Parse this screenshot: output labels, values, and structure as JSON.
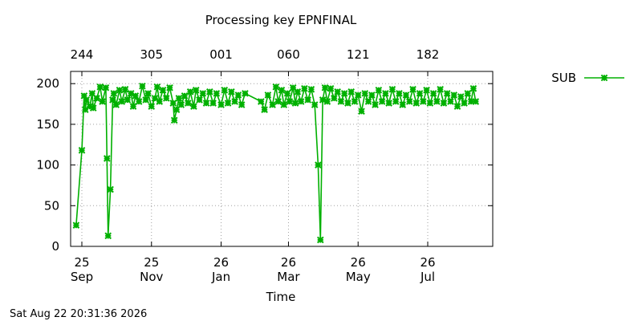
{
  "chart_data": {
    "type": "line",
    "title": "Processing key EPNFINAL",
    "xlabel": "Time",
    "ylabel": "",
    "ylim": [
      0,
      215
    ],
    "xlim": [
      "2025-09-01",
      "2026-08-22"
    ],
    "yticks": [
      "0",
      "50",
      "100",
      "150",
      "200"
    ],
    "bottom_ticks": [
      {
        "date": "2025-09-01",
        "day": "25",
        "month": "Sep"
      },
      {
        "date": "2025-11-01",
        "day": "25",
        "month": "Nov"
      },
      {
        "date": "2026-01-01",
        "day": "26",
        "month": "Jan"
      },
      {
        "date": "2026-03-01",
        "day": "26",
        "month": "Mar"
      },
      {
        "date": "2026-05-01",
        "day": "26",
        "month": "May"
      },
      {
        "date": "2026-07-01",
        "day": "26",
        "month": "Jul"
      }
    ],
    "top_ticks": [
      {
        "date": "2025-09-01",
        "label": "244"
      },
      {
        "date": "2025-11-01",
        "label": "305"
      },
      {
        "date": "2026-01-01",
        "label": "001"
      },
      {
        "date": "2026-03-01",
        "label": "060"
      },
      {
        "date": "2026-05-01",
        "label": "121"
      },
      {
        "date": "2026-07-01",
        "label": "182"
      }
    ],
    "grid": true,
    "legend": "right",
    "timestamp": "Sat Aug 22 20:31:36 2026",
    "series": [
      {
        "name": "SUB",
        "color": "#00b000",
        "marker": "star",
        "points": [
          [
            "2025-08-27",
            26
          ],
          [
            "2025-09-01",
            118
          ],
          [
            "2025-09-03",
            185
          ],
          [
            "2025-09-04",
            168
          ],
          [
            "2025-09-05",
            180
          ],
          [
            "2025-09-08",
            172
          ],
          [
            "2025-09-10",
            188
          ],
          [
            "2025-09-11",
            170
          ],
          [
            "2025-09-14",
            182
          ],
          [
            "2025-09-17",
            196
          ],
          [
            "2025-09-19",
            178
          ],
          [
            "2025-09-22",
            195
          ],
          [
            "2025-09-23",
            108
          ],
          [
            "2025-09-24",
            13
          ],
          [
            "2025-09-26",
            70
          ],
          [
            "2025-09-28",
            180
          ],
          [
            "2025-09-29",
            188
          ],
          [
            "2025-10-01",
            174
          ],
          [
            "2025-10-04",
            192
          ],
          [
            "2025-10-06",
            178
          ],
          [
            "2025-10-09",
            193
          ],
          [
            "2025-10-11",
            180
          ],
          [
            "2025-10-14",
            188
          ],
          [
            "2025-10-16",
            172
          ],
          [
            "2025-10-18",
            185
          ],
          [
            "2025-10-21",
            178
          ],
          [
            "2025-10-24",
            197
          ],
          [
            "2025-10-27",
            180
          ],
          [
            "2025-10-29",
            188
          ],
          [
            "2025-11-01",
            172
          ],
          [
            "2025-11-04",
            182
          ],
          [
            "2025-11-06",
            196
          ],
          [
            "2025-11-08",
            178
          ],
          [
            "2025-11-11",
            192
          ],
          [
            "2025-11-14",
            182
          ],
          [
            "2025-11-17",
            195
          ],
          [
            "2025-11-20",
            176
          ],
          [
            "2025-11-21",
            155
          ],
          [
            "2025-11-23",
            168
          ],
          [
            "2025-11-25",
            182
          ],
          [
            "2025-11-27",
            174
          ],
          [
            "2025-11-30",
            185
          ],
          [
            "2025-12-03",
            176
          ],
          [
            "2025-12-05",
            190
          ],
          [
            "2025-12-08",
            172
          ],
          [
            "2025-12-10",
            192
          ],
          [
            "2025-12-13",
            180
          ],
          [
            "2025-12-16",
            188
          ],
          [
            "2025-12-19",
            176
          ],
          [
            "2025-12-22",
            190
          ],
          [
            "2025-12-25",
            176
          ],
          [
            "2025-12-28",
            188
          ],
          [
            "2026-01-01",
            174
          ],
          [
            "2026-01-04",
            192
          ],
          [
            "2026-01-07",
            176
          ],
          [
            "2026-01-10",
            190
          ],
          [
            "2026-01-13",
            178
          ],
          [
            "2026-01-16",
            186
          ],
          [
            "2026-01-19",
            174
          ],
          [
            "2026-01-22",
            188
          ],
          [
            "2026-02-05",
            178
          ],
          [
            "2026-02-08",
            168
          ],
          [
            "2026-02-11",
            186
          ],
          [
            "2026-02-15",
            174
          ],
          [
            "2026-02-18",
            196
          ],
          [
            "2026-02-20",
            178
          ],
          [
            "2026-02-23",
            192
          ],
          [
            "2026-02-25",
            174
          ],
          [
            "2026-02-28",
            188
          ],
          [
            "2026-03-02",
            178
          ],
          [
            "2026-03-05",
            195
          ],
          [
            "2026-03-07",
            176
          ],
          [
            "2026-03-09",
            190
          ],
          [
            "2026-03-12",
            178
          ],
          [
            "2026-03-15",
            194
          ],
          [
            "2026-03-18",
            180
          ],
          [
            "2026-03-21",
            193
          ],
          [
            "2026-03-24",
            174
          ],
          [
            "2026-03-27",
            100
          ],
          [
            "2026-03-29",
            8
          ],
          [
            "2026-03-31",
            180
          ],
          [
            "2026-04-02",
            195
          ],
          [
            "2026-04-04",
            178
          ],
          [
            "2026-04-07",
            194
          ],
          [
            "2026-04-10",
            182
          ],
          [
            "2026-04-13",
            190
          ],
          [
            "2026-04-16",
            178
          ],
          [
            "2026-04-19",
            188
          ],
          [
            "2026-04-22",
            176
          ],
          [
            "2026-04-25",
            190
          ],
          [
            "2026-04-28",
            178
          ],
          [
            "2026-05-01",
            186
          ],
          [
            "2026-05-04",
            166
          ],
          [
            "2026-05-07",
            188
          ],
          [
            "2026-05-10",
            178
          ],
          [
            "2026-05-13",
            186
          ],
          [
            "2026-05-16",
            174
          ],
          [
            "2026-05-19",
            192
          ],
          [
            "2026-05-22",
            178
          ],
          [
            "2026-05-25",
            188
          ],
          [
            "2026-05-28",
            176
          ],
          [
            "2026-05-31",
            193
          ],
          [
            "2026-06-03",
            178
          ],
          [
            "2026-06-06",
            188
          ],
          [
            "2026-06-09",
            174
          ],
          [
            "2026-06-12",
            186
          ],
          [
            "2026-06-15",
            178
          ],
          [
            "2026-06-18",
            193
          ],
          [
            "2026-06-21",
            176
          ],
          [
            "2026-06-24",
            188
          ],
          [
            "2026-06-27",
            178
          ],
          [
            "2026-06-30",
            192
          ],
          [
            "2026-07-03",
            176
          ],
          [
            "2026-07-06",
            188
          ],
          [
            "2026-07-09",
            178
          ],
          [
            "2026-07-12",
            193
          ],
          [
            "2026-07-15",
            176
          ],
          [
            "2026-07-18",
            188
          ],
          [
            "2026-07-21",
            178
          ],
          [
            "2026-07-24",
            186
          ],
          [
            "2026-07-27",
            172
          ],
          [
            "2026-07-30",
            184
          ],
          [
            "2026-08-02",
            176
          ],
          [
            "2026-08-05",
            188
          ],
          [
            "2026-08-08",
            178
          ],
          [
            "2026-08-10",
            194
          ],
          [
            "2026-08-12",
            178
          ]
        ]
      }
    ]
  }
}
